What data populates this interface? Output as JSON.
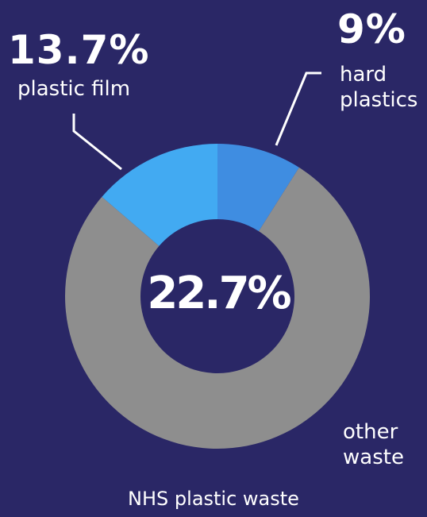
{
  "chart_data": {
    "type": "pie",
    "style": "donut",
    "title": "NHS plastic waste",
    "center_label": "22.7%",
    "slices": [
      {
        "label": "hard plastics",
        "value": 9,
        "value_label": "9%",
        "color": "#3f8de1"
      },
      {
        "label": "other waste",
        "value": 77.3,
        "value_label": "",
        "color": "#8e8e8e"
      },
      {
        "label": "plastic film",
        "value": 13.7,
        "value_label": "13.7%",
        "color": "#42aaf2"
      }
    ]
  },
  "labels": {
    "film_pct": "13.7%",
    "film_line1": "plastic film",
    "hard_pct": "9%",
    "hard_line1": "hard",
    "hard_line2": "plastics",
    "other_line1": "other",
    "other_line2": "waste"
  },
  "background_color": "#2a2766"
}
